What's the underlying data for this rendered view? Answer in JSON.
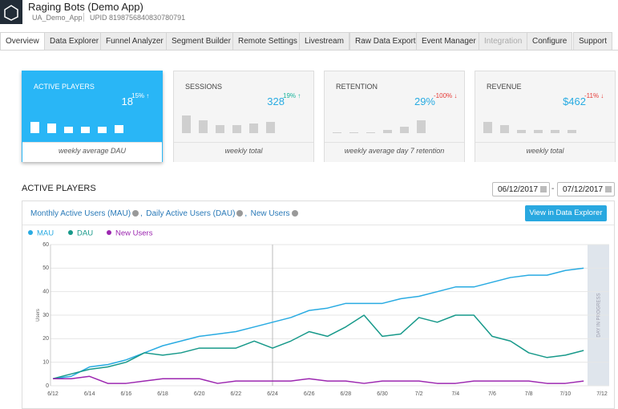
{
  "header": {
    "title": "Raging Bots (Demo App)",
    "app": "UA_Demo_App",
    "upid": "UPID 8198756840830780791"
  },
  "tabs": [
    "Overview",
    "Data Explorer",
    "Funnel Analyzer",
    "Segment Builder",
    "Remote Settings",
    "Livestream",
    "Raw Data Export",
    "Event Manager",
    "Integration",
    "Configure",
    "Support"
  ],
  "cards": [
    {
      "label": "ACTIVE PLAYERS",
      "value": "18",
      "change": "15% ↑",
      "footer": "weekly average DAU",
      "bars": [
        14,
        12,
        8,
        8,
        8,
        10
      ]
    },
    {
      "label": "SESSIONS",
      "value": "328",
      "change": "19% ↑",
      "footer": "weekly total",
      "bars": [
        22,
        16,
        10,
        10,
        12,
        14
      ]
    },
    {
      "label": "RETENTION",
      "value": "29%",
      "change": "-100% ↓",
      "footer": "weekly average day 7 retention",
      "bars": [
        1,
        1,
        1,
        4,
        8,
        16
      ]
    },
    {
      "label": "REVENUE",
      "value": "$462",
      "change": "-11% ↓",
      "footer": "weekly total",
      "bars": [
        14,
        10,
        4,
        4,
        4,
        4
      ]
    }
  ],
  "section_title": "ACTIVE PLAYERS",
  "date_from": "06/12/2017",
  "date_sep": "-",
  "date_to": "07/12/2017",
  "links": [
    "Monthly Active Users (MAU)",
    "Daily Active Users (DAU)",
    "New Users"
  ],
  "link_separator": ",",
  "button": "View in Data Explorer",
  "chart_data": {
    "type": "line",
    "y_label": "Users",
    "annotation": "DAY IN PROGRESS",
    "categories": [
      "6/12",
      null,
      "6/14",
      null,
      "6/16",
      null,
      "6/18",
      null,
      "6/20",
      null,
      "6/22",
      null,
      "6/24",
      null,
      "6/26",
      null,
      "6/28",
      null,
      "6/30",
      null,
      "7/2",
      null,
      "7/4",
      null,
      "7/6",
      null,
      "7/8",
      null,
      "7/10",
      null,
      "7/12"
    ],
    "ylim": [
      0,
      60
    ],
    "yticks": [
      0,
      10,
      20,
      30,
      40,
      50,
      60
    ],
    "grid": true,
    "series": [
      {
        "name": "MAU",
        "color": "#29abe2",
        "values": [
          3,
          4,
          8,
          9,
          11,
          14,
          17,
          19,
          21,
          22,
          23,
          25,
          27,
          29,
          32,
          33,
          35,
          35,
          35,
          37,
          38,
          40,
          42,
          42,
          44,
          46,
          47,
          47,
          49,
          50,
          null
        ]
      },
      {
        "name": "DAU",
        "color": "#17998a",
        "values": [
          3,
          5,
          7,
          8,
          10,
          14,
          13,
          14,
          16,
          16,
          16,
          19,
          16,
          19,
          23,
          21,
          25,
          30,
          21,
          22,
          29,
          27,
          30,
          30,
          21,
          19,
          14,
          12,
          13,
          15,
          null
        ]
      },
      {
        "name": "New Users",
        "color": "#9c27b0",
        "values": [
          3,
          3,
          4,
          1,
          1,
          2,
          3,
          3,
          3,
          1,
          2,
          2,
          2,
          2,
          3,
          2,
          2,
          1,
          2,
          2,
          2,
          1,
          1,
          2,
          2,
          2,
          2,
          1,
          1,
          2,
          null
        ]
      }
    ]
  }
}
